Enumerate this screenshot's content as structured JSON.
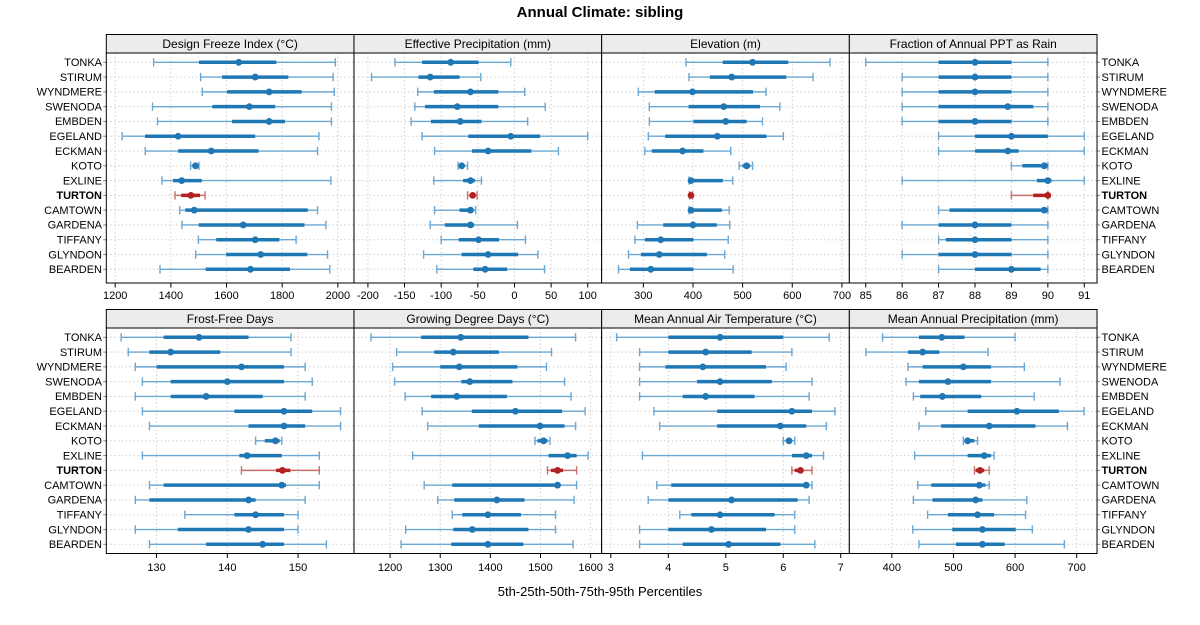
{
  "chart_data": {
    "type": "dotplot-percentiles-trellis",
    "title": "Annual Climate: sibling",
    "caption": "5th-25th-50th-75th-95th Percentiles",
    "percentiles": [
      5,
      25,
      50,
      75,
      95
    ],
    "legend_position": "none",
    "grid": "dotted",
    "highlighted_station": "TURTON",
    "colors": {
      "series_main": "#1f77b4",
      "series_whisker": "#6aa7d2",
      "highlight_main": "#b22222",
      "highlight_whisker": "#c9706b",
      "panel_header_bg": "#ececec",
      "grid_line": "#c8c8c8",
      "border": "#000000"
    },
    "stations": [
      "TONKA",
      "STIRUM",
      "WYNDMERE",
      "SWENODA",
      "EMBDEN",
      "EGELAND",
      "ECKMAN",
      "KOTO",
      "EXLINE",
      "TURTON",
      "CAMTOWN",
      "GARDENA",
      "TIFFANY",
      "GLYNDON",
      "BEARDEN"
    ],
    "panels": [
      {
        "title": "Design Freeze Index (°C)",
        "grid_row": 0,
        "grid_col": 0,
        "ticks": [
          1200,
          1400,
          1600,
          1800,
          2000
        ],
        "range": [
          1168,
          2058
        ],
        "values": [
          [
            1338,
            1501,
            1644,
            1779,
            1991
          ],
          [
            1507,
            1584,
            1703,
            1822,
            1983
          ],
          [
            1513,
            1602,
            1753,
            1870,
            1987
          ],
          [
            1334,
            1549,
            1682,
            1775,
            1977
          ],
          [
            1352,
            1620,
            1753,
            1810,
            1977
          ],
          [
            1225,
            1307,
            1426,
            1703,
            1932
          ],
          [
            1308,
            1426,
            1545,
            1715,
            1927
          ],
          [
            1471,
            1477,
            1489,
            1498,
            1501
          ],
          [
            1368,
            1408,
            1439,
            1511,
            1975
          ],
          [
            1415,
            1437,
            1472,
            1505,
            1523
          ],
          [
            1432,
            1452,
            1484,
            1892,
            1927
          ],
          [
            1440,
            1500,
            1660,
            1880,
            1957
          ],
          [
            1499,
            1563,
            1703,
            1790,
            1850
          ],
          [
            1489,
            1599,
            1723,
            1890,
            1963
          ],
          [
            1361,
            1525,
            1686,
            1828,
            1971
          ]
        ]
      },
      {
        "title": "Effective Precipitation (mm)",
        "grid_row": 0,
        "grid_col": 1,
        "ticks": [
          -200,
          -150,
          -100,
          -50,
          0,
          50,
          100
        ],
        "range": [
          -219,
          119
        ],
        "values": [
          [
            -163,
            -126,
            -87,
            -49,
            -5
          ],
          [
            -195,
            -131,
            -115,
            -75,
            -46
          ],
          [
            -132,
            -110,
            -60,
            -22,
            14
          ],
          [
            -136,
            -122,
            -78,
            -22,
            42
          ],
          [
            -141,
            -114,
            -74,
            -45,
            18
          ],
          [
            -126,
            -63,
            -5,
            35,
            100
          ],
          [
            -109,
            -58,
            -36,
            23,
            60
          ],
          [
            -77,
            -74,
            -72,
            -70,
            -64
          ],
          [
            -110,
            -70,
            -60,
            -54,
            -45
          ],
          [
            -64,
            -59,
            -57,
            -55,
            -51
          ],
          [
            -109,
            -75,
            -60,
            -56,
            -53
          ],
          [
            -115,
            -95,
            -60,
            -55,
            4
          ],
          [
            -100,
            -76,
            -49,
            -21,
            15
          ],
          [
            -124,
            -72,
            -36,
            5,
            32
          ],
          [
            -106,
            -56,
            -40,
            -10,
            41
          ]
        ]
      },
      {
        "title": "Elevation (m)",
        "grid_row": 0,
        "grid_col": 2,
        "ticks": [
          300,
          400,
          500,
          600,
          700
        ],
        "range": [
          216,
          715
        ],
        "values": [
          [
            386,
            460,
            520,
            592,
            676
          ],
          [
            392,
            434,
            478,
            588,
            642
          ],
          [
            290,
            323,
            399,
            521,
            547
          ],
          [
            312,
            391,
            462,
            535,
            575
          ],
          [
            312,
            401,
            466,
            508,
            540
          ],
          [
            310,
            344,
            449,
            548,
            582
          ],
          [
            303,
            317,
            379,
            421,
            476
          ],
          [
            493,
            500,
            508,
            515,
            520
          ],
          [
            392,
            394,
            396,
            460,
            480
          ],
          [
            393,
            394,
            396,
            397,
            399
          ],
          [
            392,
            394,
            396,
            458,
            473
          ],
          [
            288,
            340,
            400,
            448,
            474
          ],
          [
            283,
            303,
            335,
            401,
            471
          ],
          [
            270,
            295,
            332,
            428,
            464
          ],
          [
            250,
            273,
            315,
            401,
            481
          ]
        ]
      },
      {
        "title": "Fraction of Annual PPT as Rain",
        "grid_row": 0,
        "grid_col": 3,
        "ticks": [
          85,
          86,
          87,
          88,
          89,
          90,
          91
        ],
        "range": [
          84.55,
          91.35
        ],
        "values": [
          [
            85,
            87,
            88,
            89,
            90
          ],
          [
            86,
            87,
            88,
            89,
            90
          ],
          [
            86,
            87,
            88,
            89,
            90
          ],
          [
            86,
            87,
            88.9,
            89.6,
            90
          ],
          [
            86,
            87,
            88,
            89,
            90
          ],
          [
            87,
            88,
            89,
            90,
            91
          ],
          [
            87,
            88,
            88.9,
            89.2,
            91
          ],
          [
            89,
            89.3,
            89.9,
            90,
            90
          ],
          [
            86,
            89.7,
            90,
            90.1,
            91
          ],
          [
            89,
            89.6,
            90,
            90,
            90
          ],
          [
            87,
            87.3,
            89.9,
            90,
            90
          ],
          [
            86,
            87,
            88,
            89,
            90
          ],
          [
            87,
            87.2,
            88,
            89,
            90
          ],
          [
            86,
            87,
            88,
            89,
            90
          ],
          [
            87,
            88,
            89,
            89.8,
            90
          ]
        ]
      },
      {
        "title": "Frost-Free Days",
        "grid_row": 1,
        "grid_col": 0,
        "ticks": [
          130,
          140,
          150
        ],
        "range": [
          122.9,
          157.9
        ],
        "values": [
          [
            125,
            131,
            136,
            143,
            149
          ],
          [
            126,
            129,
            132,
            139,
            149
          ],
          [
            127,
            130,
            142,
            148,
            151
          ],
          [
            128,
            132,
            140,
            148,
            152
          ],
          [
            127,
            132,
            137,
            145,
            151
          ],
          [
            128,
            141,
            148,
            152,
            156
          ],
          [
            129,
            143,
            148,
            151,
            156
          ],
          [
            144,
            145.3,
            146.8,
            147.4,
            147.7
          ],
          [
            128,
            141.7,
            142.8,
            147.7,
            153
          ],
          [
            142,
            146.9,
            147.8,
            148.9,
            153
          ],
          [
            129,
            131,
            147.7,
            148.3,
            153
          ],
          [
            127,
            129,
            143,
            144,
            151
          ],
          [
            134,
            141,
            144,
            148,
            150
          ],
          [
            127,
            133,
            143,
            148,
            150
          ],
          [
            129,
            137,
            145,
            148,
            154
          ]
        ]
      },
      {
        "title": "Growing Degree Days (°C)",
        "grid_row": 1,
        "grid_col": 1,
        "ticks": [
          1200,
          1300,
          1400,
          1500,
          1600
        ],
        "range": [
          1128,
          1622
        ],
        "values": [
          [
            1162,
            1262,
            1341,
            1476,
            1570
          ],
          [
            1213,
            1288,
            1326,
            1417,
            1522
          ],
          [
            1205,
            1300,
            1338,
            1454,
            1512
          ],
          [
            1209,
            1342,
            1359,
            1444,
            1548
          ],
          [
            1230,
            1282,
            1333,
            1433,
            1561
          ],
          [
            1264,
            1363,
            1450,
            1543,
            1589
          ],
          [
            1275,
            1377,
            1499,
            1548,
            1570
          ],
          [
            1489,
            1494,
            1506,
            1514,
            1519
          ],
          [
            1245,
            1516,
            1554,
            1572,
            1595
          ],
          [
            1514,
            1521,
            1534,
            1545,
            1572
          ],
          [
            1268,
            1324,
            1534,
            1537,
            1572
          ],
          [
            1295,
            1328,
            1413,
            1468,
            1567
          ],
          [
            1324,
            1344,
            1395,
            1461,
            1530
          ],
          [
            1231,
            1326,
            1364,
            1476,
            1530
          ],
          [
            1222,
            1322,
            1395,
            1466,
            1565
          ]
        ]
      },
      {
        "title": "Mean Annual Air Temperature (°C)",
        "grid_row": 1,
        "grid_col": 2,
        "ticks": [
          3,
          4,
          5,
          6,
          7
        ],
        "range": [
          2.84,
          7.15
        ],
        "values": [
          [
            3.1,
            4.0,
            4.9,
            6.0,
            6.8
          ],
          [
            3.5,
            4.0,
            4.65,
            5.45,
            6.15
          ],
          [
            3.5,
            3.95,
            4.6,
            5.7,
            6.05
          ],
          [
            3.5,
            4.5,
            4.9,
            5.8,
            6.5
          ],
          [
            3.5,
            4.25,
            4.65,
            5.5,
            6.45
          ],
          [
            3.75,
            4.85,
            6.15,
            6.5,
            6.9
          ],
          [
            3.85,
            4.85,
            5.95,
            6.4,
            6.75
          ],
          [
            6.0,
            6.05,
            6.1,
            6.15,
            6.2
          ],
          [
            3.55,
            6.15,
            6.4,
            6.5,
            6.7
          ],
          [
            6.15,
            6.2,
            6.3,
            6.35,
            6.5
          ],
          [
            3.8,
            4.05,
            6.4,
            6.45,
            6.5
          ],
          [
            3.65,
            4.0,
            5.1,
            6.25,
            6.45
          ],
          [
            4.2,
            4.4,
            4.9,
            5.85,
            6.2
          ],
          [
            3.5,
            4.0,
            4.75,
            5.7,
            6.2
          ],
          [
            3.5,
            4.25,
            5.05,
            5.95,
            6.55
          ]
        ]
      },
      {
        "title": "Mean Annual Precipitation (mm)",
        "grid_row": 1,
        "grid_col": 3,
        "ticks": [
          400,
          500,
          600,
          700
        ],
        "range": [
          331,
          733
        ],
        "values": [
          [
            385,
            444,
            481,
            518,
            600
          ],
          [
            358,
            426,
            450,
            477,
            556
          ],
          [
            426,
            450,
            516,
            561,
            615
          ],
          [
            423,
            444,
            491,
            561,
            673
          ],
          [
            435,
            446,
            482,
            545,
            631
          ],
          [
            455,
            523,
            603,
            671,
            712
          ],
          [
            444,
            480,
            558,
            633,
            685
          ],
          [
            516,
            518,
            523,
            534,
            539
          ],
          [
            437,
            523,
            550,
            561,
            566
          ],
          [
            534,
            536,
            543,
            550,
            558
          ],
          [
            442,
            464,
            542,
            552,
            558
          ],
          [
            435,
            466,
            536,
            547,
            619
          ],
          [
            458,
            491,
            539,
            566,
            617
          ],
          [
            434,
            498,
            547,
            601,
            628
          ],
          [
            444,
            504,
            547,
            583,
            680
          ]
        ]
      }
    ]
  }
}
